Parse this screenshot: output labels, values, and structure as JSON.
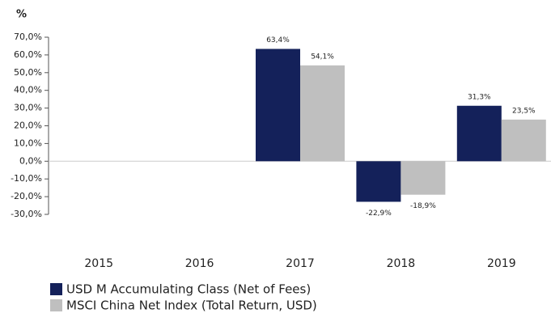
{
  "chart_data": {
    "type": "bar",
    "y_label": "%",
    "categories": [
      "2015",
      "2016",
      "2017",
      "2018",
      "2019"
    ],
    "series": [
      {
        "name": "USD M Accumulating Class (Net of Fees)",
        "color": "#14215a",
        "values": [
          null,
          null,
          63.4,
          -22.9,
          31.3
        ],
        "value_labels": [
          null,
          null,
          "63,4%",
          "-22,9%",
          "31,3%"
        ]
      },
      {
        "name": "MSCI China Net Index (Total Return, USD)",
        "color": "#bfbfbf",
        "values": [
          null,
          null,
          54.1,
          -18.9,
          23.5
        ],
        "value_labels": [
          null,
          null,
          "54,1%",
          "-18,9%",
          "23,5%"
        ]
      }
    ],
    "ylim": [
      -30,
      70
    ],
    "yticks": [
      {
        "value": 70,
        "label": "70,0%"
      },
      {
        "value": 60,
        "label": "60,0%"
      },
      {
        "value": 50,
        "label": "50,0%"
      },
      {
        "value": 40,
        "label": "40,0%"
      },
      {
        "value": 30,
        "label": "30,0%"
      },
      {
        "value": 20,
        "label": "20,0%"
      },
      {
        "value": 10,
        "label": "10,0%"
      },
      {
        "value": 0,
        "label": "0,0%"
      },
      {
        "value": -10,
        "label": "-10,0%"
      },
      {
        "value": -20,
        "label": "-20,0%"
      },
      {
        "value": -30,
        "label": "-30,0%"
      }
    ],
    "grid": false,
    "legend": "bottom-left"
  }
}
